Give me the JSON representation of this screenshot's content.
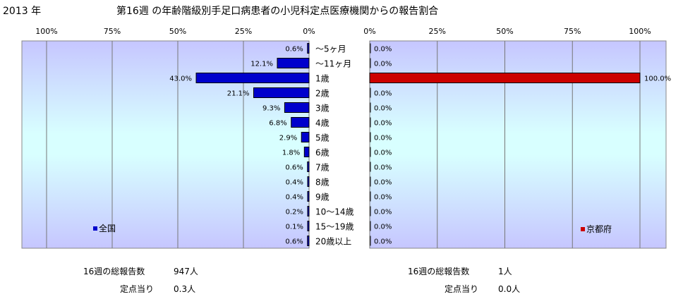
{
  "header": {
    "year": "2013 年",
    "title": "第16週 の年齢階級別手足口病患者の小児科定点医療機関からの報告割合"
  },
  "chart_data": [
    {
      "type": "bar",
      "orientation": "horizontal",
      "direction": "right-to-left",
      "categories": [
        "～5ヶ月",
        "～11ヶ月",
        "1歳",
        "2歳",
        "3歳",
        "4歳",
        "5歳",
        "6歳",
        "7歳",
        "8歳",
        "9歳",
        "10～14歳",
        "15～19歳",
        "20歳以上"
      ],
      "series": [
        {
          "name": "全国",
          "color": "#0000cc",
          "values": [
            0.6,
            12.1,
            43.0,
            21.1,
            9.3,
            6.8,
            2.9,
            1.8,
            0.6,
            0.4,
            0.4,
            0.2,
            0.1,
            0.6
          ],
          "labels": [
            "0.6%",
            "12.1%",
            "43.0%",
            "21.1%",
            "9.3%",
            "6.8%",
            "2.9%",
            "1.8%",
            "0.6%",
            "0.4%",
            "0.4%",
            "0.2%",
            "0.1%",
            "0.6%"
          ]
        }
      ],
      "xlim": [
        0,
        100
      ],
      "xticks": [
        "100%",
        "75%",
        "50%",
        "25%",
        "0%"
      ],
      "legend_position": "bottom-left",
      "grid": true
    },
    {
      "type": "bar",
      "orientation": "horizontal",
      "direction": "left-to-right",
      "categories": [
        "～5ヶ月",
        "～11ヶ月",
        "1歳",
        "2歳",
        "3歳",
        "4歳",
        "5歳",
        "6歳",
        "7歳",
        "8歳",
        "9歳",
        "10～14歳",
        "15～19歳",
        "20歳以上"
      ],
      "series": [
        {
          "name": "京都府",
          "color": "#cc0000",
          "values": [
            0,
            0,
            100.0,
            0,
            0,
            0,
            0,
            0,
            0,
            0,
            0,
            0,
            0,
            0
          ],
          "labels": [
            "0.0%",
            "0.0%",
            "100.0%",
            "0.0%",
            "0.0%",
            "0.0%",
            "0.0%",
            "0.0%",
            "0.0%",
            "0.0%",
            "0.0%",
            "0.0%",
            "0.0%",
            "0.0%"
          ]
        }
      ],
      "xlim": [
        0,
        100
      ],
      "xticks": [
        "0%",
        "25%",
        "50%",
        "75%",
        "100%"
      ],
      "legend_position": "bottom-right",
      "grid": true
    }
  ],
  "footer": {
    "left": {
      "total_label": "16週の総報告数",
      "total_value": "947人",
      "per_label": "定点当り",
      "per_value": "0.3人"
    },
    "right": {
      "total_label": "16週の総報告数",
      "total_value": "1人",
      "per_label": "定点当り",
      "per_value": "0.0人"
    }
  }
}
